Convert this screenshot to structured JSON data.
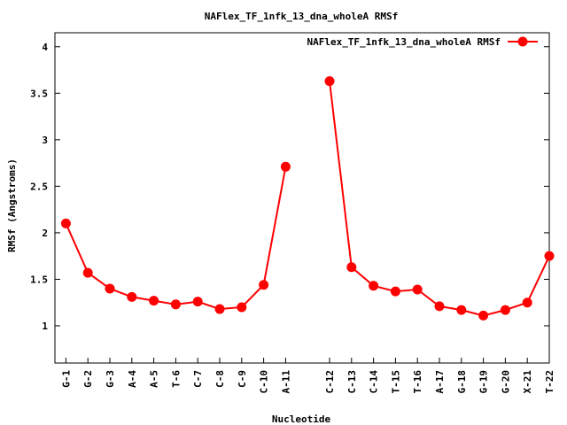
{
  "chart_data": {
    "type": "line",
    "title": "NAFlex_TF_1nfk_13_dna_wholeA RMSf",
    "xlabel": "Nucleotide",
    "ylabel": "RMSf (Angstroms)",
    "ylim": [
      0.6,
      4.15
    ],
    "yticks": [
      "1",
      "1.5",
      "2",
      "2.5",
      "3",
      "3.5",
      "4"
    ],
    "xlim": [
      0.5,
      22.5
    ],
    "grid": false,
    "legend": "top-right",
    "categories": [
      "G-1",
      "G-2",
      "G-3",
      "A-4",
      "A-5",
      "T-6",
      "C-7",
      "C-8",
      "C-9",
      "C-10",
      "A-11",
      "C-12",
      "C-13",
      "C-14",
      "T-15",
      "T-16",
      "A-17",
      "G-18",
      "G-19",
      "G-20",
      "X-21",
      "T-22"
    ],
    "x": [
      1,
      2,
      3,
      4,
      5,
      6,
      7,
      8,
      9,
      10,
      11,
      13,
      14,
      15,
      16,
      17,
      18,
      19,
      20,
      21,
      22,
      23
    ],
    "series": [
      {
        "name": "NAFlex_TF_1nfk_13_dna_wholeA RMSf",
        "color": "#ff0000",
        "segments": [
          [
            2.1,
            1.57,
            1.4,
            1.31,
            1.27,
            1.23,
            1.26,
            1.18,
            1.2,
            1.44,
            2.71
          ],
          [
            3.63,
            1.63,
            1.43,
            1.37,
            1.39,
            1.21,
            1.17,
            1.11,
            1.17,
            1.25,
            1.75
          ]
        ]
      }
    ]
  }
}
